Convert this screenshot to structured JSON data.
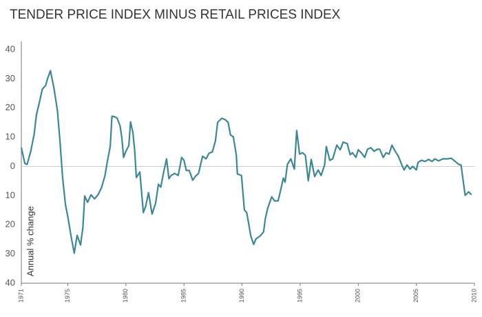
{
  "chart_data": {
    "type": "line",
    "title": "TENDER PRICE INDEX MINUS RETAIL PRICES INDEX",
    "y_label": "Annual % change",
    "x": [
      1971.0,
      1971.3,
      1971.5,
      1971.8,
      1972.1,
      1972.3,
      1972.5,
      1972.8,
      1973.1,
      1973.25,
      1973.5,
      1973.8,
      1974.1,
      1974.3,
      1974.55,
      1974.8,
      1975.0,
      1975.3,
      1975.55,
      1975.8,
      1976.1,
      1976.3,
      1976.45,
      1976.7,
      1977.0,
      1977.3,
      1977.6,
      1977.9,
      1978.2,
      1978.4,
      1978.65,
      1978.8,
      1979.05,
      1979.25,
      1979.5,
      1979.65,
      1979.8,
      1980.0,
      1980.25,
      1980.4,
      1980.6,
      1980.75,
      1980.9,
      1981.2,
      1981.5,
      1981.7,
      1981.95,
      1982.25,
      1982.55,
      1982.8,
      1983.0,
      1983.25,
      1983.5,
      1983.7,
      1983.9,
      1984.2,
      1984.5,
      1984.8,
      1985.0,
      1985.2,
      1985.45,
      1985.75,
      1986.0,
      1986.25,
      1986.6,
      1986.9,
      1987.15,
      1987.45,
      1987.7,
      1987.9,
      1988.25,
      1988.55,
      1988.8,
      1989.0,
      1989.25,
      1989.5,
      1989.6,
      1989.95,
      1990.2,
      1990.4,
      1990.55,
      1990.75,
      1991.0,
      1991.2,
      1991.55,
      1991.85,
      1992.0,
      1992.2,
      1992.55,
      1992.8,
      1993.1,
      1993.3,
      1993.55,
      1993.7,
      1993.9,
      1994.2,
      1994.5,
      1994.7,
      1994.95,
      1995.2,
      1995.45,
      1995.7,
      1995.95,
      1996.25,
      1996.55,
      1996.8,
      1997.1,
      1997.25,
      1997.55,
      1997.8,
      1998.15,
      1998.45,
      1998.7,
      1999.05,
      1999.3,
      1999.5,
      1999.8,
      2000.0,
      2000.3,
      2000.55,
      2000.8,
      2001.1,
      2001.35,
      2001.65,
      2001.85,
      2002.15,
      2002.4,
      2002.65,
      2002.9,
      2003.15,
      2003.45,
      2003.75,
      2003.95,
      2004.2,
      2004.45,
      2004.7,
      2005.0,
      2005.15,
      2005.45,
      2005.75,
      2006.05,
      2006.35,
      2006.6,
      2006.9,
      2007.3,
      2007.7,
      2008.0,
      2008.35,
      2008.65,
      2008.85,
      2009.2,
      2009.5,
      2009.75
    ],
    "series": [
      {
        "color": "#3a8796",
        "values": [
          6.4,
          1,
          0.7,
          5,
          11,
          17.7,
          21,
          26.4,
          27.8,
          30,
          32.8,
          27,
          19.3,
          9.9,
          -3.8,
          -13.2,
          -17.2,
          -24.3,
          -29.7,
          -23.6,
          -26.9,
          -20.8,
          -10.1,
          -12.3,
          -9.7,
          -11.1,
          -9.7,
          -7.3,
          -3.1,
          1.7,
          6.8,
          17.2,
          17,
          16.5,
          13.9,
          9.9,
          3.1,
          5.2,
          7.1,
          15.3,
          11.6,
          5.7,
          -3.8,
          -1.9,
          -15.8,
          -13.7,
          -9,
          -16.3,
          -12.7,
          -6.1,
          -7.1,
          -1.9,
          2.6,
          -4.2,
          -3.1,
          -2.4,
          -3.1,
          3.1,
          2.1,
          -1.4,
          -1.4,
          -4.7,
          -3.3,
          -2.4,
          3.5,
          2.6,
          4.5,
          5,
          8.7,
          15.1,
          16.5,
          16,
          15.1,
          10.8,
          10.1,
          4,
          -2.6,
          -3.1,
          -14.9,
          -15.8,
          -19.1,
          -23.8,
          -26.7,
          -24.8,
          -23.8,
          -22.4,
          -17.9,
          -14.4,
          -10.4,
          -11.8,
          -11.8,
          -8.5,
          -4,
          -5.4,
          0.7,
          2.6,
          -0.9,
          12.3,
          4.2,
          4.7,
          3.8,
          -4.9,
          2.4,
          -3.5,
          -1.2,
          -3.1,
          0.5,
          6.8,
          2.1,
          2.6,
          7.3,
          5.7,
          8.3,
          7.8,
          4,
          4.7,
          3.1,
          5.7,
          4.5,
          3.1,
          5.9,
          6.4,
          5.2,
          5.9,
          5.9,
          3.1,
          4.7,
          4.2,
          7.3,
          5.4,
          3.5,
          0.5,
          -1.2,
          0.5,
          -0.9,
          0,
          -1.2,
          1.4,
          2.1,
          1.7,
          2.4,
          1.7,
          2.6,
          1.9,
          2.6,
          2.6,
          2.8,
          1.7,
          0.7,
          0.5,
          -9.9,
          -8.7,
          -9.7
        ]
      }
    ],
    "xlim": [
      1971,
      2010
    ],
    "xticks": [
      1971,
      1975,
      1980,
      1985,
      1990,
      1995,
      2000,
      2005,
      2010
    ],
    "ylim": [
      -40,
      40
    ],
    "yticks": [
      40,
      30,
      20,
      10,
      0,
      {
        "value": -10,
        "label": "10"
      },
      {
        "value": -20,
        "label": "20"
      },
      {
        "value": -30,
        "label": "30"
      },
      {
        "value": -40,
        "label": "40"
      }
    ],
    "zero_line": true
  }
}
